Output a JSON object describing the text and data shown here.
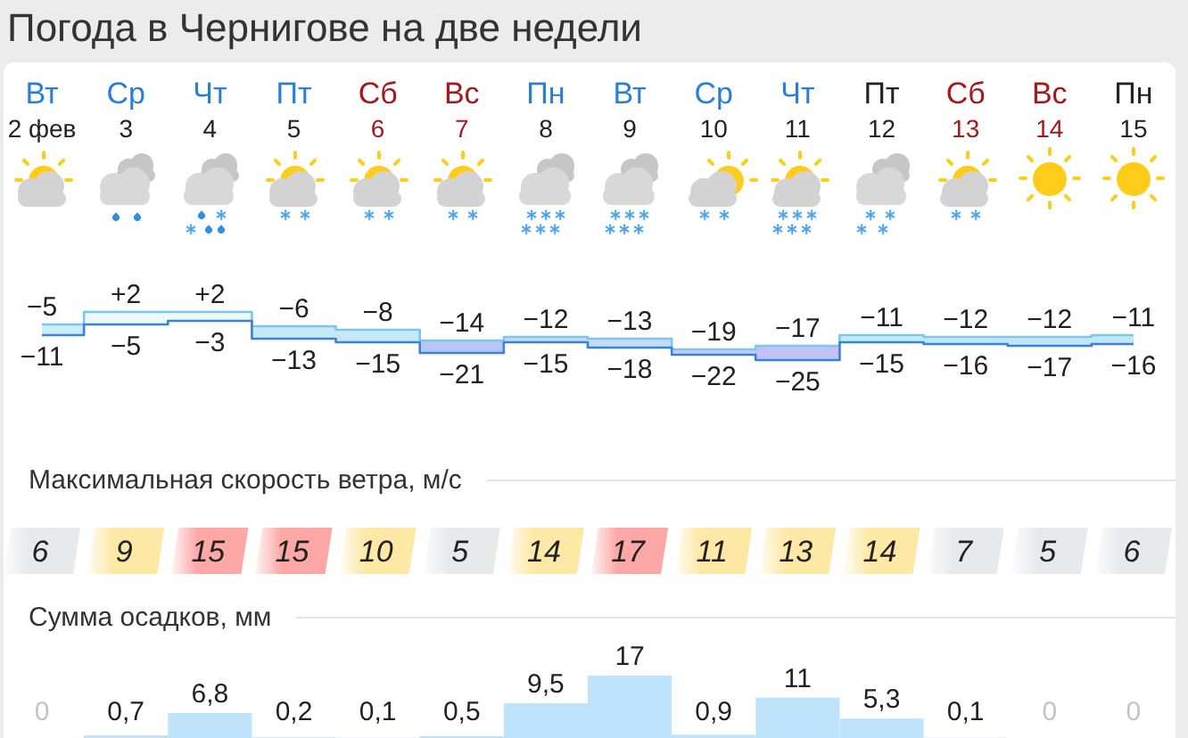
{
  "chart_data": [
    {
      "type": "step",
      "title": "Погода в Чернигове на две недели",
      "categories": [
        "Вт\n2 фев",
        "Ср\n3",
        "Чт\n4",
        "Пт\n5",
        "Сб\n6",
        "Вс\n7",
        "Пн\n8",
        "Вт\n9",
        "Ср\n10",
        "Чт\n11",
        "Пт\n12",
        "Сб\n13",
        "Вс\n14",
        "Пн\n15"
      ],
      "series": [
        {
          "color": "#7cc6ea",
          "values": [
            -5,
            2,
            2,
            -6,
            -8,
            -14,
            -12,
            -13,
            -19,
            -17,
            -11,
            -12,
            -12,
            -11
          ],
          "value_labels": [
            "−5",
            "+2",
            "+2",
            "−6",
            "−8",
            "−14",
            "−12",
            "−13",
            "−19",
            "−17",
            "−11",
            "−12",
            "−12",
            "−11"
          ],
          "lower": [
            -11,
            -5,
            -3,
            -13,
            -15,
            -21,
            -15,
            -18,
            -22,
            -25,
            -15,
            -16,
            -17,
            -16
          ],
          "upper": [
            -5,
            2,
            2,
            -6,
            -8,
            -14,
            -12,
            -13,
            -19,
            -17,
            -11,
            -12,
            -12,
            -11
          ]
        },
        {
          "color": "#3a82d9",
          "values": [
            -11,
            -5,
            -3,
            -13,
            -15,
            -21,
            -15,
            -18,
            -22,
            -25,
            -15,
            -16,
            -17,
            -16
          ],
          "value_labels": [
            "−11",
            "−5",
            "−3",
            "−13",
            "−15",
            "−21",
            "−15",
            "−18",
            "−22",
            "−25",
            "−15",
            "−16",
            "−17",
            "−16"
          ]
        }
      ],
      "colors": [
        "#c9eefb",
        "#eefaf7",
        "#eefaf7",
        "#c6e8fa",
        "#c6e8fa",
        "#b7c6f5",
        "#c3dcf7",
        "#c3dcf7",
        "#c8c9f6",
        "#c3c2f6",
        "#c2ecfb",
        "#c2e6f9",
        "#c2e6f9",
        "#c2e6f9"
      ]
    },
    {
      "type": "heatmap",
      "title": "Максимальная скорость ветра, м/с",
      "categories": [
        null,
        null,
        null,
        null,
        null,
        null,
        null,
        null,
        null,
        null,
        null,
        null,
        null,
        null
      ],
      "y_categories": [
        null
      ],
      "cells": [
        [
          6,
          9,
          15,
          15,
          10,
          5,
          14,
          17,
          11,
          13,
          14,
          7,
          5,
          6
        ]
      ],
      "data_labels": true,
      "colors": [
        "#e8e9eb",
        "#fde8a6",
        "#fda7a7",
        "#fda7a7",
        "#fde8a6",
        "#e8e9eb",
        "#fde8a6",
        "#fda7a7",
        "#fde8a6",
        "#fde8a6",
        "#fde8a6",
        "#e8e9eb",
        "#e8e9eb",
        "#e8e9eb"
      ]
    },
    {
      "type": "bar",
      "title": "Сумма осадков, мм",
      "categories": [
        null,
        null,
        null,
        null,
        null,
        null,
        null,
        null,
        null,
        null,
        null,
        null,
        null,
        null
      ],
      "values": [
        0,
        0.7,
        6.8,
        0.2,
        0.1,
        0.5,
        9.5,
        17,
        0.9,
        11,
        5.3,
        0.1,
        0,
        0
      ],
      "value_labels": [
        "0",
        "0,7",
        "6,8",
        "0,2",
        "0,1",
        "0,5",
        "9,5",
        "17",
        "0,9",
        "11",
        "5,3",
        "0,1",
        "0",
        "0"
      ],
      "color": "#bfe3fb"
    }
  ]
}
